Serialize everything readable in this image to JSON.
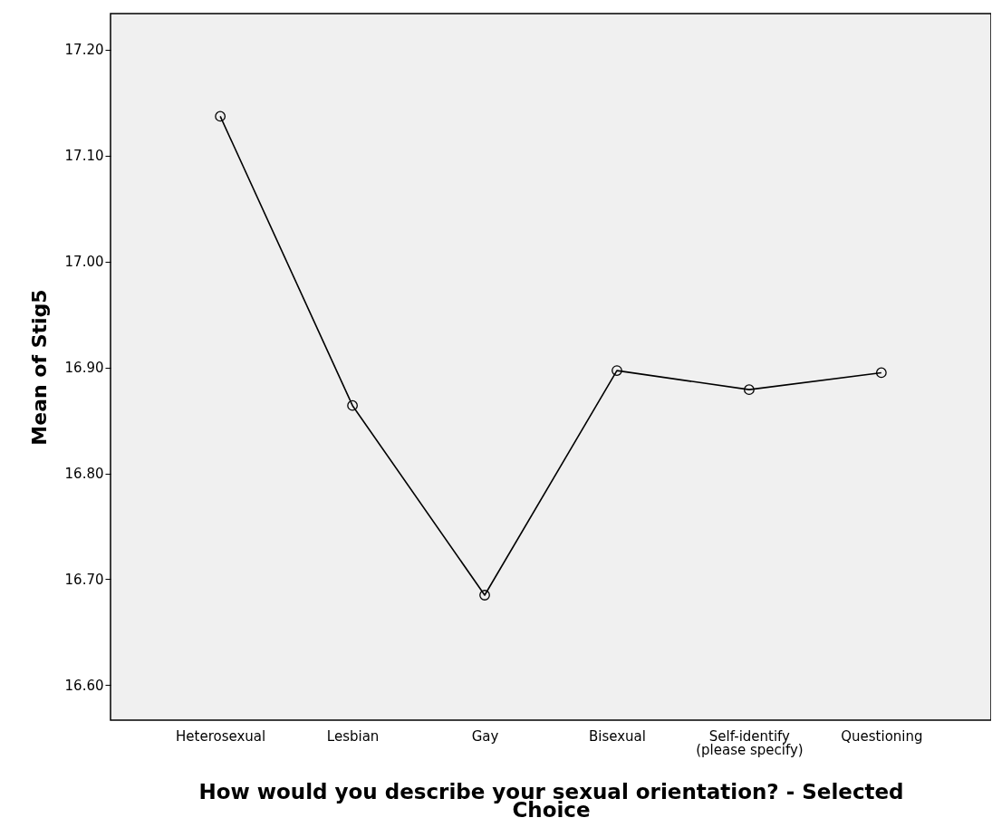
{
  "chart_data": {
    "type": "line",
    "xlabel": "How would you describe your sexual orientation? - Selected\nChoice",
    "ylabel": "Mean of Stig5",
    "categories": [
      "Heterosexual",
      "Lesbian",
      "Gay",
      "Bisexual",
      "Self-identify\n(please specify)",
      "Questioning"
    ],
    "series": [
      {
        "color": "#000000",
        "values": [
          17.137,
          16.864,
          16.685,
          16.897,
          16.879,
          16.895
        ]
      }
    ],
    "ylim": [
      16.567,
      17.234
    ],
    "yticks": [
      {
        "value": 16.6,
        "label": "16.60"
      },
      {
        "value": 16.7,
        "label": "16.70"
      },
      {
        "value": 16.8,
        "label": "16.80"
      },
      {
        "value": 16.9,
        "label": "16.90"
      },
      {
        "value": 17.0,
        "label": "17.00"
      },
      {
        "value": 17.1,
        "label": "17.10"
      },
      {
        "value": 17.2,
        "label": "17.20"
      }
    ],
    "grid": false,
    "marker": "circle",
    "line_style": "solid"
  }
}
